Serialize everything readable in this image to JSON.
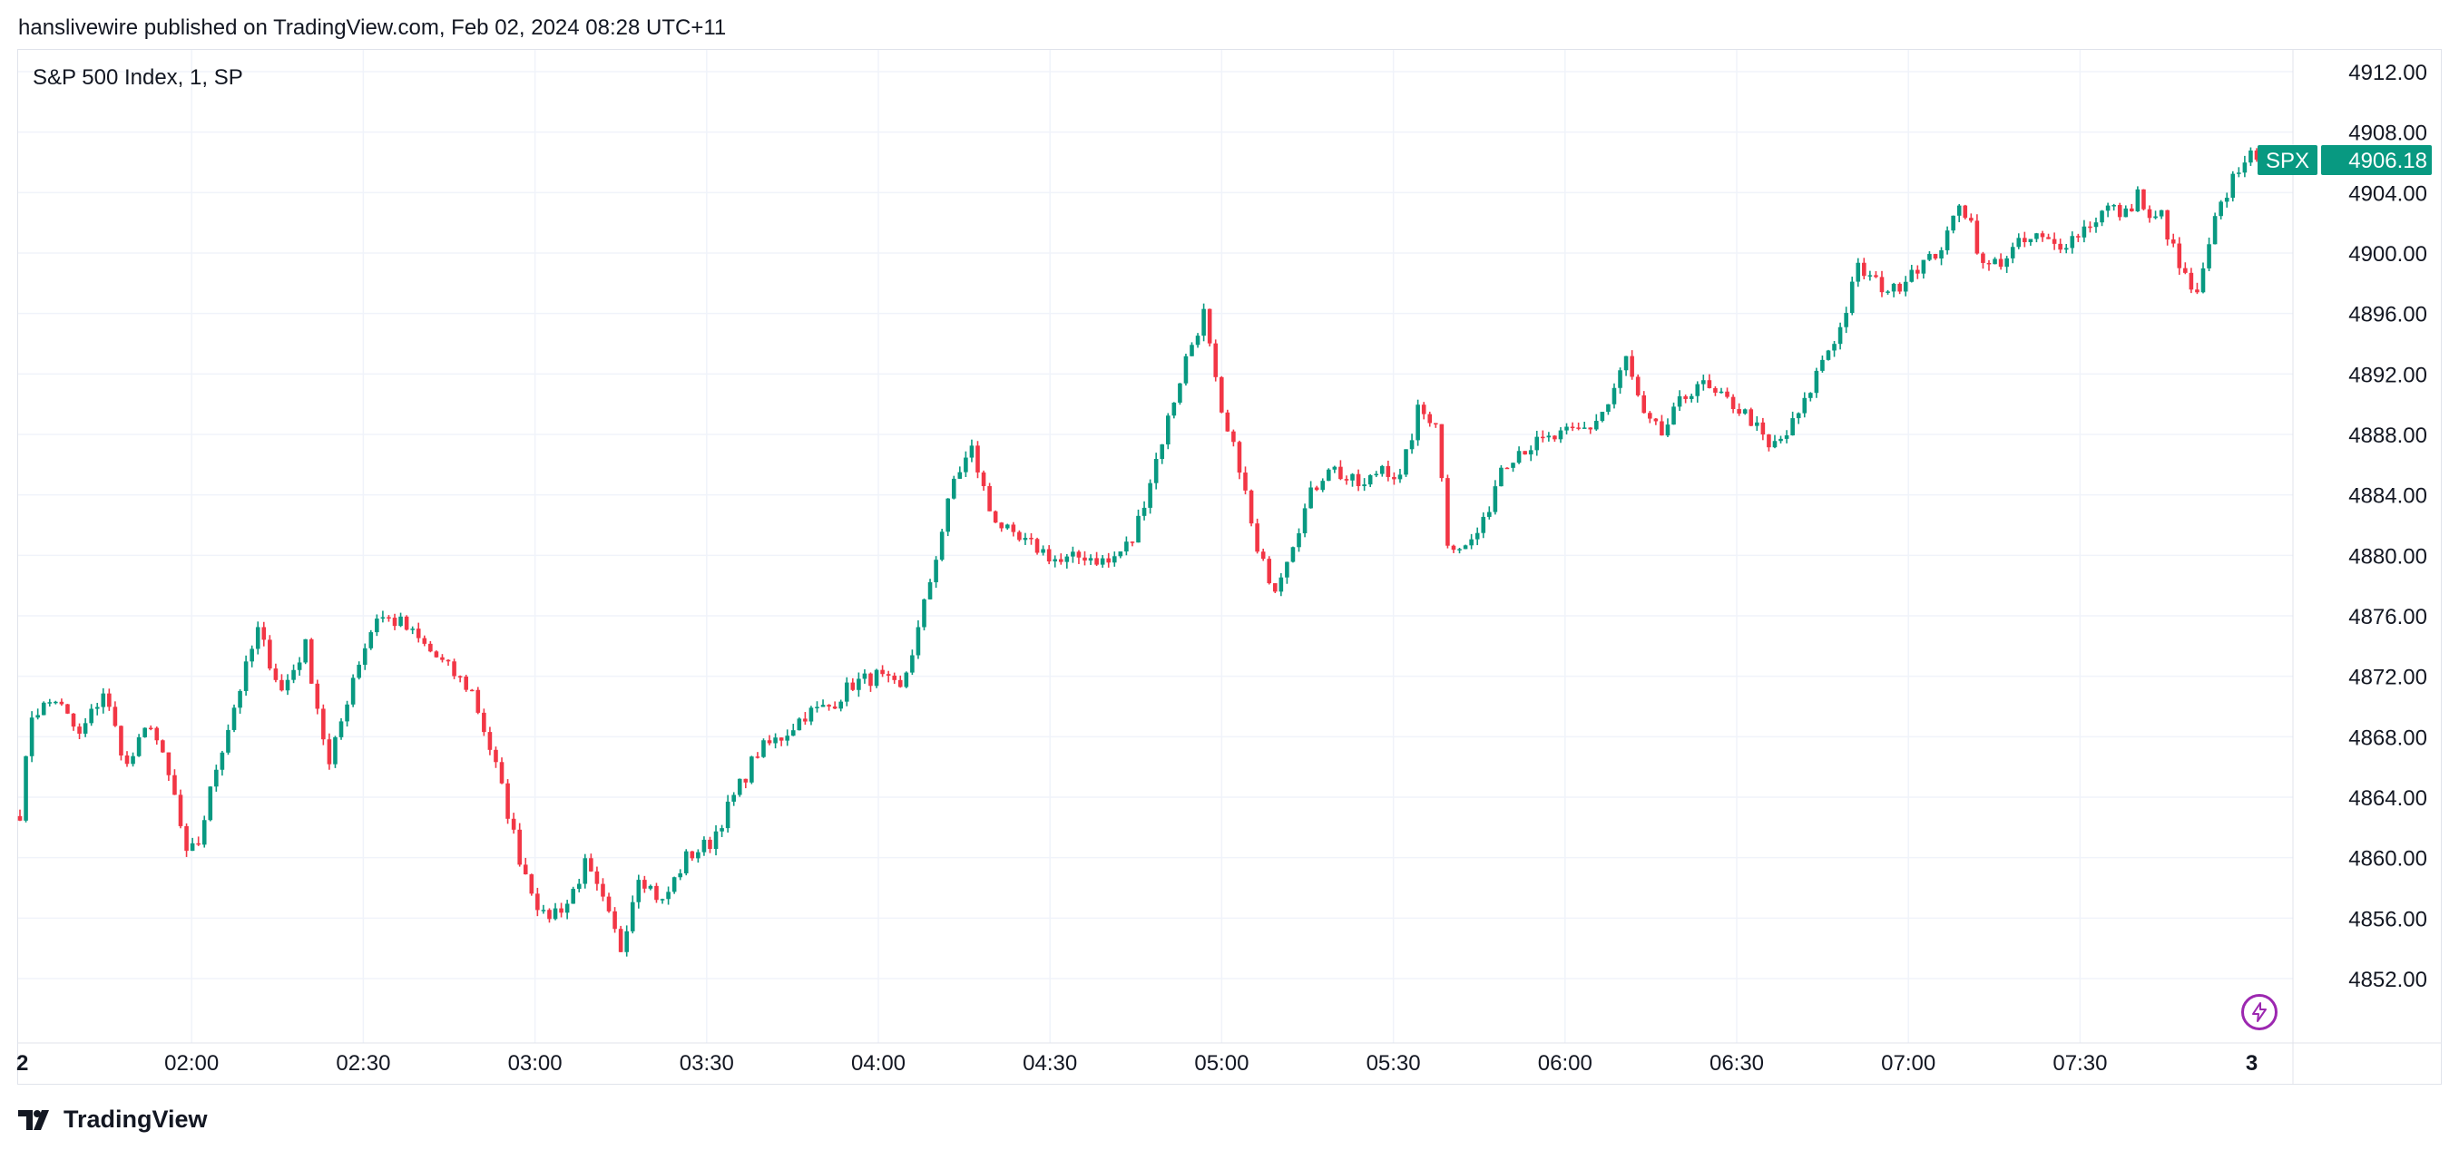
{
  "header": {
    "published_line": "hanslivewire published on TradingView.com, Feb 02, 2024 08:28 UTC+11"
  },
  "footer": {
    "brand": "TradingView"
  },
  "icons": {
    "brand_logo": "tradingview-logo-icon",
    "lightning": "lightning-icon"
  },
  "colors": {
    "up": "#089981",
    "down": "#f23645",
    "grid": "#f0f3fa",
    "text": "#131722",
    "lightning": "#9c27b0"
  },
  "chart_data": {
    "type": "candlestick",
    "title": "S&P 500 Index, 1, SP",
    "symbol": "SPX",
    "last_price": 4906.18,
    "last_price_label": "4906.18",
    "y_ticks": [
      "4912.00",
      "4908.00",
      "4904.00",
      "4900.00",
      "4896.00",
      "4892.00",
      "4888.00",
      "4884.00",
      "4880.00",
      "4876.00",
      "4872.00",
      "4868.00",
      "4864.00",
      "4860.00",
      "4856.00",
      "4852.00"
    ],
    "x_ticks": [
      "2",
      "02:00",
      "02:30",
      "03:00",
      "03:30",
      "04:00",
      "04:30",
      "05:00",
      "05:30",
      "06:00",
      "06:30",
      "07:00",
      "07:30",
      "3"
    ],
    "ylim": [
      4848.5,
      4913.5
    ],
    "grid": true,
    "price_path": [
      [
        0,
        4863.0
      ],
      [
        2,
        4869.5
      ],
      [
        6,
        4870.5
      ],
      [
        10,
        4868.0
      ],
      [
        14,
        4871.0
      ],
      [
        18,
        4866.0
      ],
      [
        22,
        4869.0
      ],
      [
        26,
        4864.0
      ],
      [
        28,
        4860.0
      ],
      [
        30,
        4861.0
      ],
      [
        33,
        4866.0
      ],
      [
        36,
        4870.0
      ],
      [
        40,
        4875.0
      ],
      [
        44,
        4871.0
      ],
      [
        48,
        4874.0
      ],
      [
        52,
        4866.0
      ],
      [
        56,
        4872.0
      ],
      [
        60,
        4876.0
      ],
      [
        64,
        4875.5
      ],
      [
        68,
        4874.0
      ],
      [
        72,
        4872.5
      ],
      [
        76,
        4871.0
      ],
      [
        80,
        4866.0
      ],
      [
        84,
        4860.0
      ],
      [
        88,
        4856.0
      ],
      [
        92,
        4857.0
      ],
      [
        95,
        4859.5
      ],
      [
        98,
        4857.0
      ],
      [
        101,
        4854.0
      ],
      [
        104,
        4859.0
      ],
      [
        108,
        4857.0
      ],
      [
        112,
        4860.0
      ],
      [
        116,
        4861.0
      ],
      [
        120,
        4864.0
      ],
      [
        124,
        4867.0
      ],
      [
        128,
        4868.0
      ],
      [
        132,
        4869.5
      ],
      [
        136,
        4870.0
      ],
      [
        140,
        4871.5
      ],
      [
        144,
        4872.0
      ],
      [
        148,
        4871.0
      ],
      [
        151,
        4875.0
      ],
      [
        154,
        4880.0
      ],
      [
        157,
        4885.0
      ],
      [
        160,
        4887.0
      ],
      [
        163,
        4883.0
      ],
      [
        167,
        4881.0
      ],
      [
        171,
        4880.5
      ],
      [
        175,
        4879.5
      ],
      [
        179,
        4880.0
      ],
      [
        183,
        4879.5
      ],
      [
        187,
        4881.0
      ],
      [
        190,
        4885.0
      ],
      [
        193,
        4889.0
      ],
      [
        196,
        4893.0
      ],
      [
        199,
        4896.0
      ],
      [
        202,
        4889.0
      ],
      [
        205,
        4886.0
      ],
      [
        208,
        4880.0
      ],
      [
        211,
        4878.0
      ],
      [
        214,
        4881.0
      ],
      [
        217,
        4884.0
      ],
      [
        220,
        4886.0
      ],
      [
        223,
        4885.0
      ],
      [
        226,
        4884.5
      ],
      [
        229,
        4886.0
      ],
      [
        232,
        4885.0
      ],
      [
        235,
        4889.5
      ],
      [
        238,
        4889.0
      ],
      [
        240,
        4881.0
      ],
      [
        243,
        4880.5
      ],
      [
        246,
        4882.0
      ],
      [
        249,
        4886.0
      ],
      [
        252,
        4887.0
      ],
      [
        256,
        4887.5
      ],
      [
        260,
        4888.0
      ],
      [
        264,
        4888.5
      ],
      [
        267,
        4890.0
      ],
      [
        270,
        4893.0
      ],
      [
        273,
        4889.0
      ],
      [
        276,
        4888.0
      ],
      [
        279,
        4890.0
      ],
      [
        282,
        4891.5
      ],
      [
        285,
        4890.5
      ],
      [
        288,
        4890.0
      ],
      [
        291,
        4889.0
      ],
      [
        294,
        4887.0
      ],
      [
        297,
        4888.0
      ],
      [
        300,
        4890.0
      ],
      [
        303,
        4893.0
      ],
      [
        306,
        4895.0
      ],
      [
        309,
        4899.0
      ],
      [
        312,
        4898.0
      ],
      [
        315,
        4897.5
      ],
      [
        318,
        4899.0
      ],
      [
        321,
        4899.5
      ],
      [
        324,
        4901.0
      ],
      [
        326,
        4903.5
      ],
      [
        328,
        4902.0
      ],
      [
        330,
        4899.0
      ],
      [
        333,
        4899.5
      ],
      [
        336,
        4900.5
      ],
      [
        339,
        4901.0
      ],
      [
        342,
        4900.5
      ],
      [
        345,
        4901.0
      ],
      [
        348,
        4902.0
      ],
      [
        351,
        4903.0
      ],
      [
        354,
        4902.5
      ],
      [
        356,
        4904.0
      ],
      [
        358,
        4902.0
      ],
      [
        360,
        4902.5
      ],
      [
        363,
        4899.0
      ],
      [
        366,
        4897.0
      ],
      [
        369,
        4902.0
      ],
      [
        372,
        4905.0
      ],
      [
        374,
        4906.4
      ],
      [
        376,
        4906.18
      ]
    ],
    "total_bars": 377
  }
}
